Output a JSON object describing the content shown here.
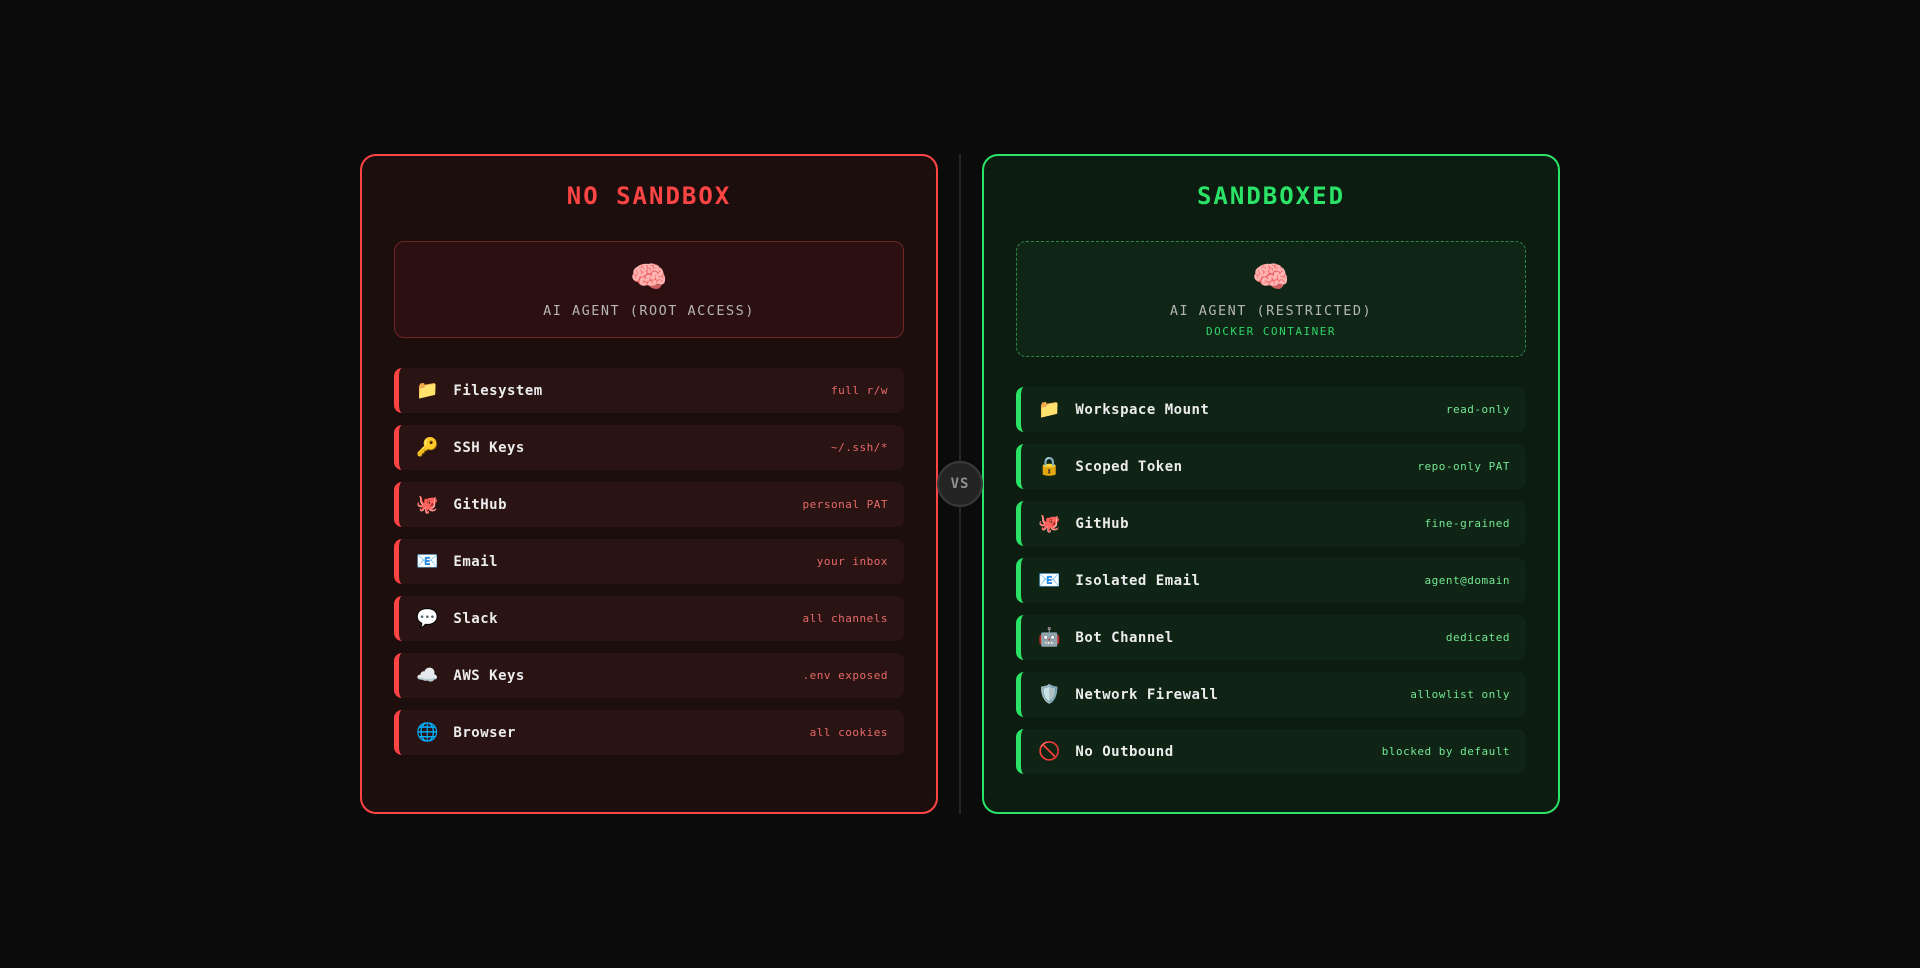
{
  "vs_badge": {
    "label": "VS"
  },
  "left_panel": {
    "title": "NO SANDBOX",
    "accent_color": "#ff4444",
    "value_color": "#e66a6a",
    "agent_card": {
      "icon_name": "brain-icon",
      "icon": "🧠",
      "label": "AI AGENT (ROOT ACCESS)"
    },
    "rows": [
      {
        "icon_name": "folder-icon",
        "icon": "📁",
        "label": "Filesystem",
        "value": "full r/w"
      },
      {
        "icon_name": "key-icon",
        "icon": "🔑",
        "label": "SSH Keys",
        "value": "~/.ssh/*"
      },
      {
        "icon_name": "octopus-icon",
        "icon": "🐙",
        "label": "GitHub",
        "value": "personal PAT"
      },
      {
        "icon_name": "email-icon",
        "icon": "📧",
        "label": "Email",
        "value": "your inbox"
      },
      {
        "icon_name": "speech-balloon-icon",
        "icon": "💬",
        "label": "Slack",
        "value": "all channels"
      },
      {
        "icon_name": "cloud-icon",
        "icon": "☁️",
        "label": "AWS Keys",
        "value": ".env exposed"
      },
      {
        "icon_name": "globe-icon",
        "icon": "🌐",
        "label": "Browser",
        "value": "all cookies"
      }
    ]
  },
  "right_panel": {
    "title": "SANDBOXED",
    "accent_color": "#2be367",
    "value_color": "#72e692",
    "agent_card": {
      "icon_name": "brain-icon",
      "icon": "🧠",
      "label": "AI AGENT (RESTRICTED)",
      "sublabel": "DOCKER CONTAINER"
    },
    "rows": [
      {
        "icon_name": "folder-icon",
        "icon": "📁",
        "label": "Workspace Mount",
        "value": "read-only"
      },
      {
        "icon_name": "lock-icon",
        "icon": "🔒",
        "label": "Scoped Token",
        "value": "repo-only PAT"
      },
      {
        "icon_name": "octopus-icon",
        "icon": "🐙",
        "label": "GitHub",
        "value": "fine-grained"
      },
      {
        "icon_name": "email-icon",
        "icon": "📧",
        "label": "Isolated Email",
        "value": "agent@domain"
      },
      {
        "icon_name": "robot-icon",
        "icon": "🤖",
        "label": "Bot Channel",
        "value": "dedicated"
      },
      {
        "icon_name": "shield-icon",
        "icon": "🛡️",
        "label": "Network Firewall",
        "value": "allowlist only"
      },
      {
        "icon_name": "no-entry-icon",
        "icon": "🚫",
        "label": "No Outbound",
        "value": "blocked by default"
      }
    ]
  }
}
